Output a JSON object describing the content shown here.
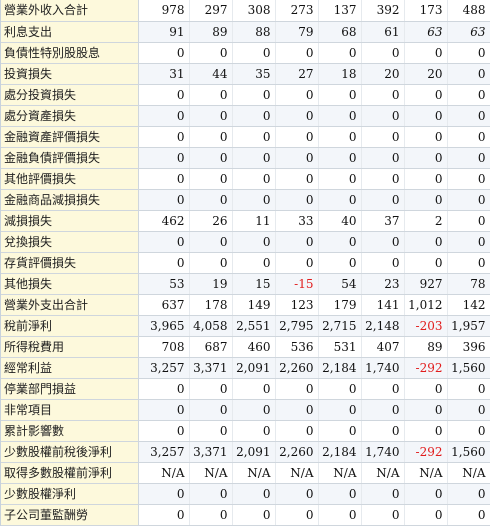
{
  "rows": [
    {
      "label": "營業外收入合計",
      "values": [
        "978",
        "297",
        "308",
        "273",
        "137",
        "392",
        "173",
        "488"
      ]
    },
    {
      "label": "利息支出",
      "values": [
        "91",
        "89",
        "88",
        "79",
        "68",
        "61",
        "63",
        "63"
      ],
      "italic_last": [
        6,
        7
      ]
    },
    {
      "label": "負債性特別股股息",
      "values": [
        "0",
        "0",
        "0",
        "0",
        "0",
        "0",
        "0",
        "0"
      ]
    },
    {
      "label": "投資損失",
      "values": [
        "31",
        "44",
        "35",
        "27",
        "18",
        "20",
        "20",
        "0"
      ]
    },
    {
      "label": "處分投資損失",
      "values": [
        "0",
        "0",
        "0",
        "0",
        "0",
        "0",
        "0",
        "0"
      ]
    },
    {
      "label": "處分資產損失",
      "values": [
        "0",
        "0",
        "0",
        "0",
        "0",
        "0",
        "0",
        "0"
      ]
    },
    {
      "label": "金融資產評價損失",
      "values": [
        "0",
        "0",
        "0",
        "0",
        "0",
        "0",
        "0",
        "0"
      ]
    },
    {
      "label": "金融負債評價損失",
      "values": [
        "0",
        "0",
        "0",
        "0",
        "0",
        "0",
        "0",
        "0"
      ]
    },
    {
      "label": "其他評價損失",
      "values": [
        "0",
        "0",
        "0",
        "0",
        "0",
        "0",
        "0",
        "0"
      ]
    },
    {
      "label": "金融商品減損損失",
      "values": [
        "0",
        "0",
        "0",
        "0",
        "0",
        "0",
        "0",
        "0"
      ]
    },
    {
      "label": "減損損失",
      "values": [
        "462",
        "26",
        "11",
        "33",
        "40",
        "37",
        "2",
        "0"
      ]
    },
    {
      "label": "兌換損失",
      "values": [
        "0",
        "0",
        "0",
        "0",
        "0",
        "0",
        "0",
        "0"
      ]
    },
    {
      "label": "存貨評價損失",
      "values": [
        "0",
        "0",
        "0",
        "0",
        "0",
        "0",
        "0",
        "0"
      ]
    },
    {
      "label": "其他損失",
      "values": [
        "53",
        "19",
        "15",
        "-15",
        "54",
        "23",
        "927",
        "78"
      ]
    },
    {
      "label": "營業外支出合計",
      "values": [
        "637",
        "178",
        "149",
        "123",
        "179",
        "141",
        "1,012",
        "142"
      ]
    },
    {
      "label": "稅前淨利",
      "values": [
        "3,965",
        "4,058",
        "2,551",
        "2,795",
        "2,715",
        "2,148",
        "-203",
        "1,957"
      ]
    },
    {
      "label": "所得稅費用",
      "values": [
        "708",
        "687",
        "460",
        "536",
        "531",
        "407",
        "89",
        "396"
      ]
    },
    {
      "label": "經常利益",
      "values": [
        "3,257",
        "3,371",
        "2,091",
        "2,260",
        "2,184",
        "1,740",
        "-292",
        "1,560"
      ]
    },
    {
      "label": "停業部門損益",
      "values": [
        "0",
        "0",
        "0",
        "0",
        "0",
        "0",
        "0",
        "0"
      ]
    },
    {
      "label": "非常項目",
      "values": [
        "0",
        "0",
        "0",
        "0",
        "0",
        "0",
        "0",
        "0"
      ]
    },
    {
      "label": "累計影響數",
      "values": [
        "0",
        "0",
        "0",
        "0",
        "0",
        "0",
        "0",
        "0"
      ]
    },
    {
      "label": "少數股權前稅後淨利",
      "values": [
        "3,257",
        "3,371",
        "2,091",
        "2,260",
        "2,184",
        "1,740",
        "-292",
        "1,560"
      ]
    },
    {
      "label": "取得多數股權前淨利",
      "values": [
        "N/A",
        "N/A",
        "N/A",
        "N/A",
        "N/A",
        "N/A",
        "N/A",
        "N/A"
      ]
    },
    {
      "label": "少數股權淨利",
      "values": [
        "0",
        "0",
        "0",
        "0",
        "0",
        "0",
        "0",
        "0"
      ]
    },
    {
      "label": "子公司董監酬勞",
      "values": [
        "0",
        "0",
        "0",
        "0",
        "0",
        "0",
        "0",
        "0"
      ]
    }
  ]
}
